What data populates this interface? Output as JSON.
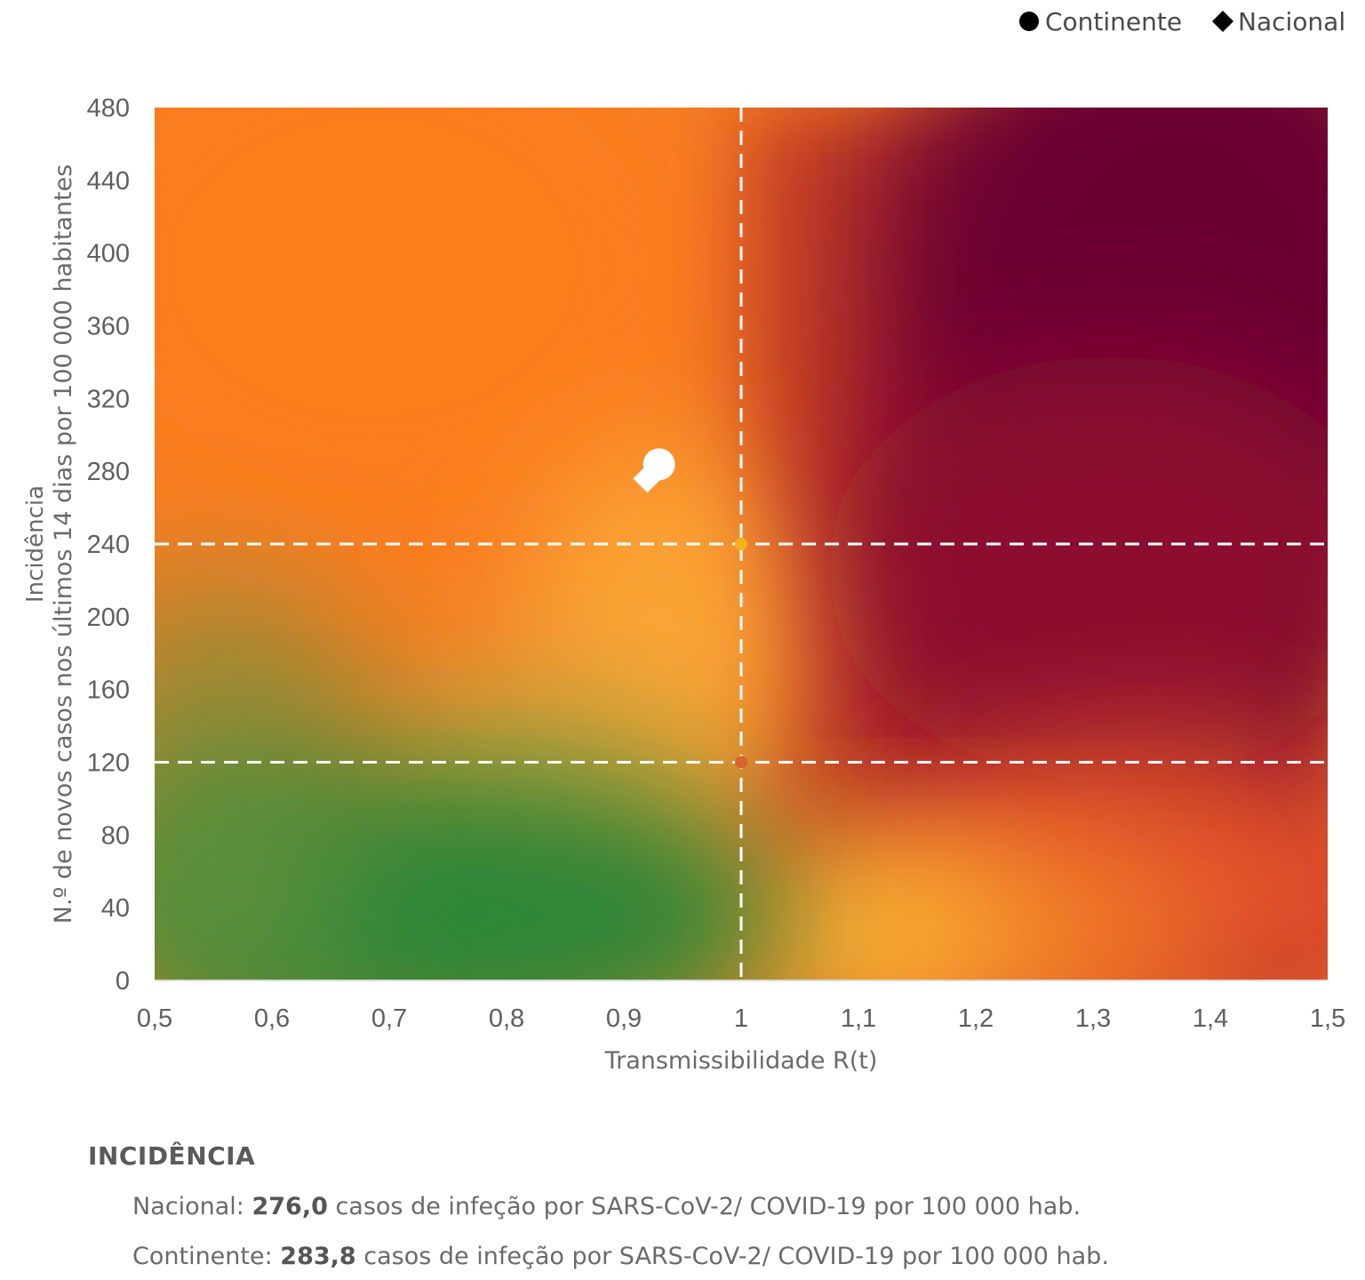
{
  "legend": {
    "items": [
      {
        "label": "Continente",
        "marker": "circle",
        "color": "#000000"
      },
      {
        "label": "Nacional",
        "marker": "diamond",
        "color": "#000000"
      }
    ]
  },
  "chart_data": {
    "type": "scatter",
    "xlabel": "Transmissibilidade R(t)",
    "ylabel_line1": "Incidência",
    "ylabel_line2": "N.º de novos casos nos últimos 14 dias por 100 000 habitantes",
    "xlim": [
      0.5,
      1.5
    ],
    "ylim": [
      0,
      480
    ],
    "x_ticks": [
      0.5,
      0.6,
      0.7,
      0.8,
      0.9,
      1.0,
      1.1,
      1.2,
      1.3,
      1.4,
      1.5
    ],
    "x_tick_labels": [
      "0,5",
      "0,6",
      "0,7",
      "0,8",
      "0,9",
      "1",
      "1,1",
      "1,2",
      "1,3",
      "1,4",
      "1,5"
    ],
    "y_ticks": [
      0,
      40,
      80,
      120,
      160,
      200,
      240,
      280,
      320,
      360,
      400,
      440,
      480
    ],
    "y_tick_labels": [
      "0",
      "40",
      "80",
      "120",
      "160",
      "200",
      "240",
      "280",
      "320",
      "360",
      "400",
      "440",
      "480"
    ],
    "reference_lines": {
      "vertical_x": [
        1.0
      ],
      "horizontal_y": [
        120,
        240
      ]
    },
    "background": "risk-matrix color gradient: green (low R, low incidence) through yellow/orange to dark crimson (high R, high incidence)",
    "series": [
      {
        "name": "Continente",
        "marker": "circle",
        "color": "#ffffff",
        "points": [
          {
            "x": 0.93,
            "y": 283.8
          }
        ]
      },
      {
        "name": "Nacional",
        "marker": "diamond",
        "color": "#ffffff",
        "points": [
          {
            "x": 0.92,
            "y": 276.0
          }
        ]
      }
    ],
    "intersection_dots": [
      {
        "x": 1.0,
        "y": 240,
        "color": "#f6b21c"
      },
      {
        "x": 1.0,
        "y": 120,
        "color": "#d8642e"
      }
    ]
  },
  "summary": {
    "title": "INCIDÊNCIA",
    "lines": [
      {
        "prefix": "Nacional: ",
        "value": "276,0",
        "suffix": " casos de infeção por SARS-CoV-2/ COVID-19 por 100 000 hab."
      },
      {
        "prefix": "Continente: ",
        "value": "283,8",
        "suffix": " casos de infeção por SARS-CoV-2/ COVID-19 por 100 000 hab."
      }
    ]
  }
}
